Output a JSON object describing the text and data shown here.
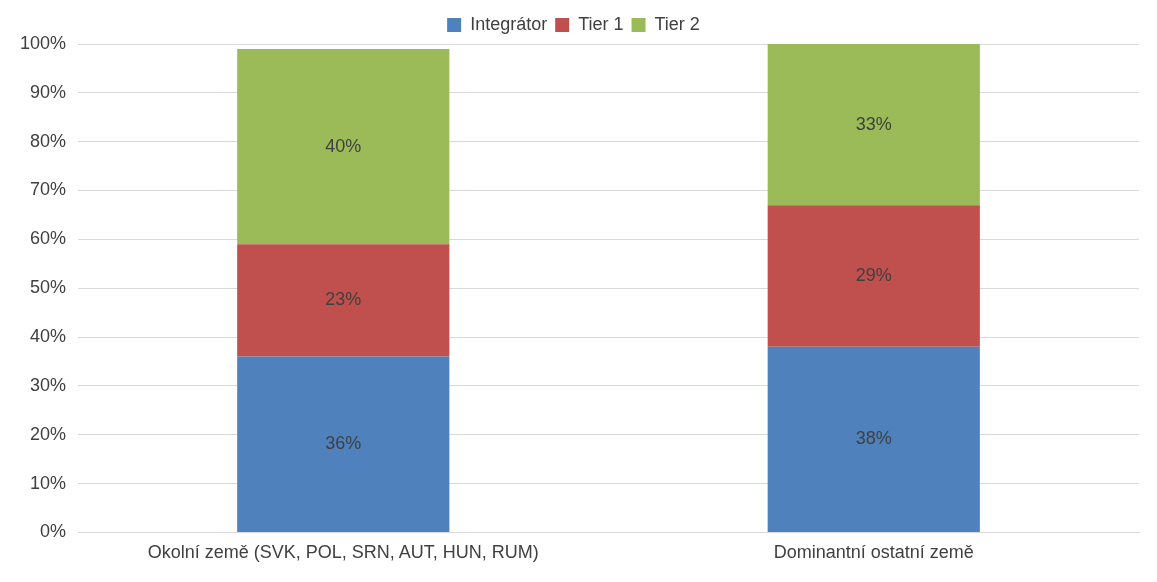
{
  "chart_data": {
    "type": "bar",
    "stacked": true,
    "categories": [
      "Okolní země (SVK, POL, SRN, AUT, HUN, RUM)",
      "Dominantní ostatní země"
    ],
    "series": [
      {
        "name": "Integrátor",
        "color": "#4f81bd",
        "values": [
          36,
          38
        ]
      },
      {
        "name": "Tier 1",
        "color": "#c0504d",
        "values": [
          23,
          29
        ]
      },
      {
        "name": "Tier 2",
        "color": "#9bbb59",
        "values": [
          40,
          33
        ]
      }
    ],
    "ylim": [
      0,
      100
    ],
    "yticks": [
      {
        "value": 0,
        "label": "0%"
      },
      {
        "value": 10,
        "label": "10%"
      },
      {
        "value": 20,
        "label": "20%"
      },
      {
        "value": 30,
        "label": "30%"
      },
      {
        "value": 40,
        "label": "40%"
      },
      {
        "value": 50,
        "label": "50%"
      },
      {
        "value": 60,
        "label": "60%"
      },
      {
        "value": 70,
        "label": "70%"
      },
      {
        "value": 80,
        "label": "80%"
      },
      {
        "value": 90,
        "label": "90%"
      },
      {
        "value": 100,
        "label": "100%"
      }
    ],
    "value_labels": [
      [
        "36%",
        "38%"
      ],
      [
        "23%",
        "29%"
      ],
      [
        "40%",
        "33%"
      ]
    ],
    "grid": "y",
    "legend": "top"
  }
}
